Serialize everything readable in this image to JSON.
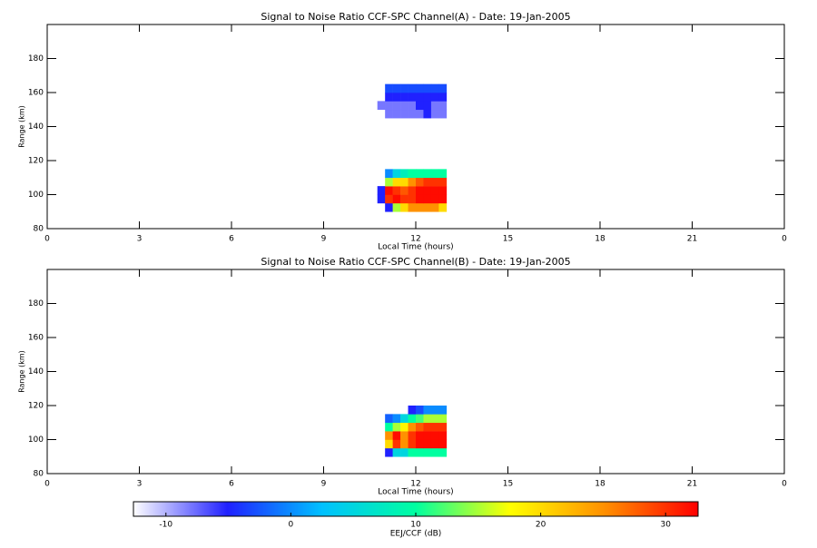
{
  "chart_data": [
    {
      "type": "heatmap",
      "title": "Signal to Noise Ratio CCF-SPC Channel(A) - Date: 19-Jan-2005",
      "xlabel": "Local Time (hours)",
      "ylabel": "Range (km)",
      "xlim": [
        0,
        24
      ],
      "xticks": [
        0,
        3,
        6,
        9,
        12,
        15,
        18,
        21,
        {
          "value": 24,
          "label": "0"
        }
      ],
      "ylim": [
        80,
        200
      ],
      "yticks": [
        80,
        100,
        120,
        140,
        160,
        180
      ],
      "xbins": [
        10.75,
        11.0,
        11.25,
        11.5,
        11.75,
        12.0,
        12.25,
        12.5,
        12.75,
        13.0
      ],
      "ybins": [
        90,
        95,
        100,
        105,
        110,
        115,
        145,
        150,
        155,
        160,
        165
      ],
      "z": [
        [
          null,
          -5,
          15,
          20,
          25,
          25,
          25,
          25,
          20
        ],
        [
          -5,
          30,
          32,
          30,
          30,
          32,
          32,
          32,
          32
        ],
        [
          -5,
          32,
          30,
          28,
          30,
          32,
          32,
          32,
          32
        ],
        [
          null,
          15,
          20,
          20,
          25,
          28,
          30,
          30,
          30
        ],
        [
          null,
          0,
          5,
          8,
          10,
          10,
          10,
          10,
          10
        ],
        [
          null,
          null,
          null,
          null,
          null,
          null,
          null,
          null,
          null
        ],
        [
          null,
          -8,
          -8,
          -8,
          -8,
          -8,
          -5,
          -8,
          -8
        ],
        [
          -8,
          -8,
          -8,
          -8,
          -8,
          -5,
          -5,
          -8,
          -8
        ],
        [
          null,
          -5,
          -5,
          -5,
          -5,
          -5,
          -5,
          -5,
          -5
        ],
        [
          null,
          -3,
          -3,
          -3,
          -3,
          -3,
          -3,
          -3,
          -3
        ]
      ]
    },
    {
      "type": "heatmap",
      "title": "Signal to Noise Ratio CCF-SPC Channel(B) - Date: 19-Jan-2005",
      "xlabel": "Local Time (hours)",
      "ylabel": "Range (km)",
      "xlim": [
        0,
        24
      ],
      "xticks": [
        0,
        3,
        6,
        9,
        12,
        15,
        18,
        21,
        {
          "value": 24,
          "label": "0"
        }
      ],
      "ylim": [
        80,
        200
      ],
      "yticks": [
        80,
        100,
        120,
        140,
        160,
        180
      ],
      "xbins": [
        10.75,
        11.0,
        11.25,
        11.5,
        11.75,
        12.0,
        12.25,
        12.5,
        12.75,
        13.0
      ],
      "ybins": [
        90,
        95,
        100,
        105,
        110,
        115,
        120
      ],
      "z": [
        [
          null,
          -5,
          5,
          5,
          10,
          10,
          10,
          10,
          10
        ],
        [
          null,
          20,
          30,
          25,
          30,
          32,
          32,
          32,
          32
        ],
        [
          null,
          25,
          32,
          25,
          30,
          32,
          32,
          32,
          32
        ],
        [
          null,
          10,
          15,
          18,
          25,
          28,
          30,
          30,
          30
        ],
        [
          null,
          -2,
          0,
          5,
          10,
          12,
          15,
          15,
          15
        ],
        [
          null,
          null,
          null,
          null,
          -5,
          -3,
          0,
          0,
          0
        ]
      ]
    }
  ],
  "colorbar": {
    "label": "EEJ/CCF (dB)",
    "zlim": [
      -12.6,
      32.6
    ],
    "ticks": [
      -10,
      0,
      10,
      20,
      30
    ],
    "colors": [
      "#ffffff",
      "#2020ff",
      "#00c0ff",
      "#00ffa0",
      "#ffff00",
      "#ff9000",
      "#ff0000"
    ]
  }
}
